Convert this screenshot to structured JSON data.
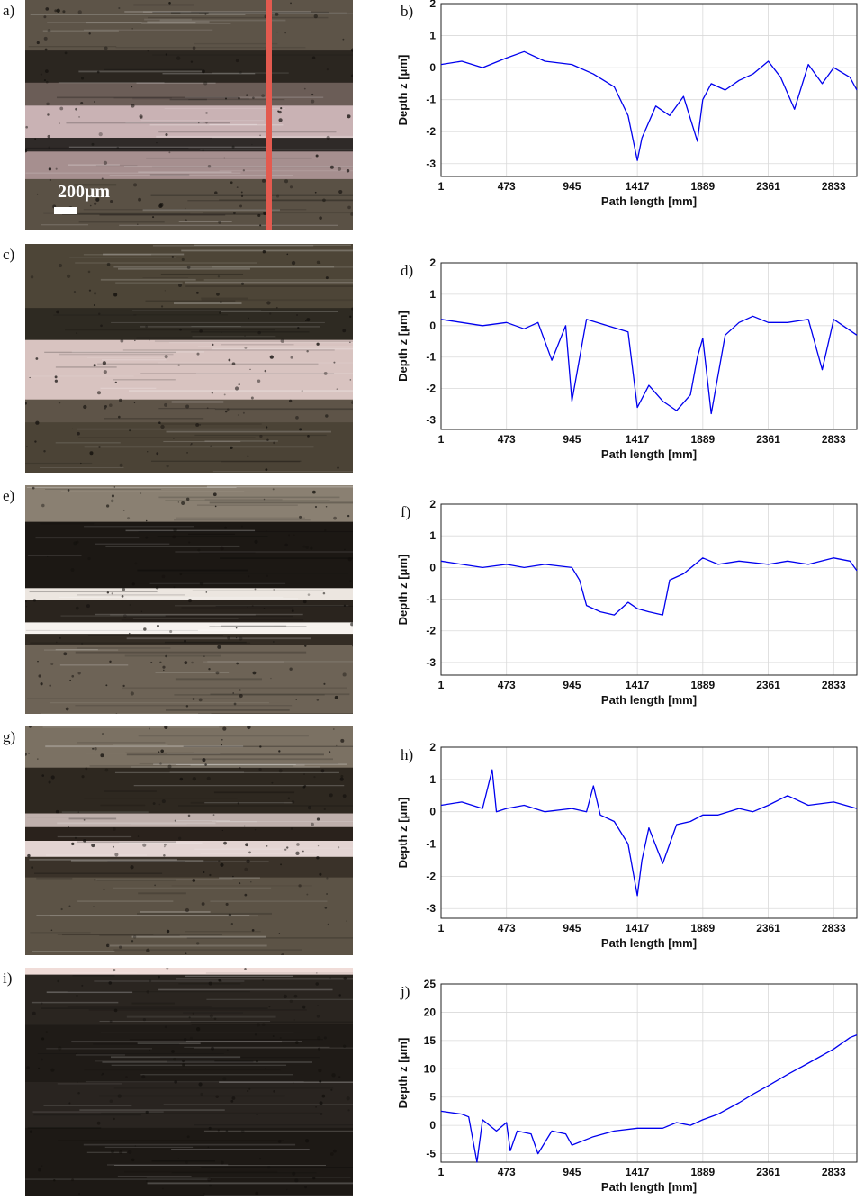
{
  "figure": {
    "panels_left": [
      {
        "id": "a",
        "label": "a)",
        "texture": "worn",
        "scale_text": "200μm",
        "has_profile_line": true
      },
      {
        "id": "c",
        "label": "c)",
        "texture": "bright",
        "scale_text": "",
        "has_profile_line": false
      },
      {
        "id": "e",
        "label": "e)",
        "texture": "dark-bands",
        "scale_text": "",
        "has_profile_line": false
      },
      {
        "id": "g",
        "label": "g)",
        "texture": "mixed",
        "scale_text": "",
        "has_profile_line": false
      },
      {
        "id": "i",
        "label": "i)",
        "texture": "very-dark",
        "scale_text": "",
        "has_profile_line": false
      }
    ],
    "colors": {
      "line": "#0000ee",
      "profile_marker": "#e35a4f",
      "grid": "#d9d9d9"
    }
  },
  "chart_data": [
    {
      "id": "b",
      "label": "b)",
      "type": "line",
      "xlabel": "Path length [mm]",
      "ylabel": "Depth z [μm]",
      "xlim": [
        1,
        3000
      ],
      "ylim": [
        -3.4,
        2
      ],
      "xticks": [
        1,
        473,
        945,
        1417,
        1889,
        2361,
        2833
      ],
      "yticks": [
        2,
        1,
        0,
        -1,
        -2,
        -3
      ],
      "x": [
        1,
        150,
        300,
        473,
        600,
        750,
        945,
        1100,
        1250,
        1350,
        1417,
        1450,
        1550,
        1650,
        1750,
        1850,
        1889,
        1950,
        2050,
        2150,
        2250,
        2361,
        2450,
        2550,
        2650,
        2750,
        2833,
        2950,
        3000
      ],
      "y": [
        0.1,
        0.2,
        0.0,
        0.3,
        0.5,
        0.2,
        0.1,
        -0.2,
        -0.6,
        -1.5,
        -2.9,
        -2.2,
        -1.2,
        -1.5,
        -0.9,
        -2.3,
        -1.0,
        -0.5,
        -0.7,
        -0.4,
        -0.2,
        0.2,
        -0.3,
        -1.3,
        0.1,
        -0.5,
        0.0,
        -0.3,
        -0.7
      ]
    },
    {
      "id": "d",
      "label": "d)",
      "type": "line",
      "xlabel": "Path length [mm]",
      "ylabel": "Depth z [μm]",
      "xlim": [
        1,
        3000
      ],
      "ylim": [
        -3.3,
        2
      ],
      "xticks": [
        1,
        473,
        945,
        1417,
        1889,
        2361,
        2833
      ],
      "yticks": [
        2,
        1,
        0,
        -1,
        -2,
        -3
      ],
      "x": [
        1,
        150,
        300,
        473,
        600,
        700,
        800,
        900,
        945,
        1050,
        1200,
        1350,
        1417,
        1500,
        1600,
        1700,
        1800,
        1850,
        1889,
        1950,
        2050,
        2150,
        2250,
        2361,
        2500,
        2650,
        2750,
        2833,
        3000
      ],
      "y": [
        0.2,
        0.1,
        0.0,
        0.1,
        -0.1,
        0.1,
        -1.1,
        0.0,
        -2.4,
        0.2,
        0.0,
        -0.2,
        -2.6,
        -1.9,
        -2.4,
        -2.7,
        -2.2,
        -1.0,
        -0.4,
        -2.8,
        -0.3,
        0.1,
        0.3,
        0.1,
        0.1,
        0.2,
        -1.4,
        0.2,
        -0.3
      ]
    },
    {
      "id": "f",
      "label": "f)",
      "type": "line",
      "xlabel": "Path length [mm]",
      "ylabel": "Depth z [μm]",
      "xlim": [
        1,
        3000
      ],
      "ylim": [
        -3.4,
        2
      ],
      "xticks": [
        1,
        473,
        945,
        1417,
        1889,
        2361,
        2833
      ],
      "yticks": [
        2,
        1,
        0,
        -1,
        -2,
        -3
      ],
      "x": [
        1,
        150,
        300,
        473,
        600,
        750,
        945,
        1000,
        1050,
        1150,
        1250,
        1350,
        1417,
        1500,
        1600,
        1650,
        1750,
        1889,
        2000,
        2150,
        2361,
        2500,
        2650,
        2833,
        2950,
        3000
      ],
      "y": [
        0.2,
        0.1,
        0.0,
        0.1,
        0.0,
        0.1,
        0.0,
        -0.4,
        -1.2,
        -1.4,
        -1.5,
        -1.1,
        -1.3,
        -1.4,
        -1.5,
        -0.4,
        -0.2,
        0.3,
        0.1,
        0.2,
        0.1,
        0.2,
        0.1,
        0.3,
        0.2,
        -0.1
      ]
    },
    {
      "id": "h",
      "label": "h)",
      "type": "line",
      "xlabel": "Path length [mm]",
      "ylabel": "Depth z [μm]",
      "xlim": [
        1,
        3000
      ],
      "ylim": [
        -3.3,
        2
      ],
      "xticks": [
        1,
        473,
        945,
        1417,
        1889,
        2361,
        2833
      ],
      "yticks": [
        2,
        1,
        0,
        -1,
        -2,
        -3
      ],
      "x": [
        1,
        150,
        300,
        370,
        400,
        473,
        600,
        750,
        945,
        1050,
        1100,
        1150,
        1250,
        1350,
        1417,
        1450,
        1500,
        1600,
        1700,
        1800,
        1889,
        2000,
        2150,
        2250,
        2361,
        2500,
        2650,
        2833,
        3000
      ],
      "y": [
        0.2,
        0.3,
        0.1,
        1.3,
        0.0,
        0.1,
        0.2,
        0.0,
        0.1,
        0.0,
        0.8,
        -0.1,
        -0.3,
        -1.0,
        -2.6,
        -1.5,
        -0.5,
        -1.6,
        -0.4,
        -0.3,
        -0.1,
        -0.1,
        0.1,
        0.0,
        0.2,
        0.5,
        0.2,
        0.3,
        0.1
      ]
    },
    {
      "id": "j",
      "label": "j)",
      "type": "line",
      "xlabel": "Path length [mm]",
      "ylabel": "Depth z [μm]",
      "xlim": [
        1,
        3000
      ],
      "ylim": [
        -6.5,
        25
      ],
      "xticks": [
        1,
        473,
        945,
        1417,
        1889,
        2361,
        2833
      ],
      "yticks": [
        25,
        20,
        15,
        10,
        5,
        0,
        -5
      ],
      "x": [
        1,
        150,
        200,
        260,
        300,
        400,
        473,
        500,
        550,
        650,
        700,
        800,
        900,
        945,
        1100,
        1250,
        1417,
        1600,
        1700,
        1800,
        1889,
        2000,
        2150,
        2250,
        2361,
        2500,
        2650,
        2833,
        2950,
        3000
      ],
      "y": [
        2.5,
        2.0,
        1.5,
        -6.5,
        1.0,
        -1.0,
        0.5,
        -4.5,
        -1.0,
        -1.5,
        -5.0,
        -1.0,
        -1.5,
        -3.5,
        -2.0,
        -1.0,
        -0.5,
        -0.5,
        0.5,
        0.0,
        1.0,
        2.0,
        4.0,
        5.5,
        7.0,
        9.0,
        11.0,
        13.5,
        15.5,
        16.0
      ]
    }
  ]
}
